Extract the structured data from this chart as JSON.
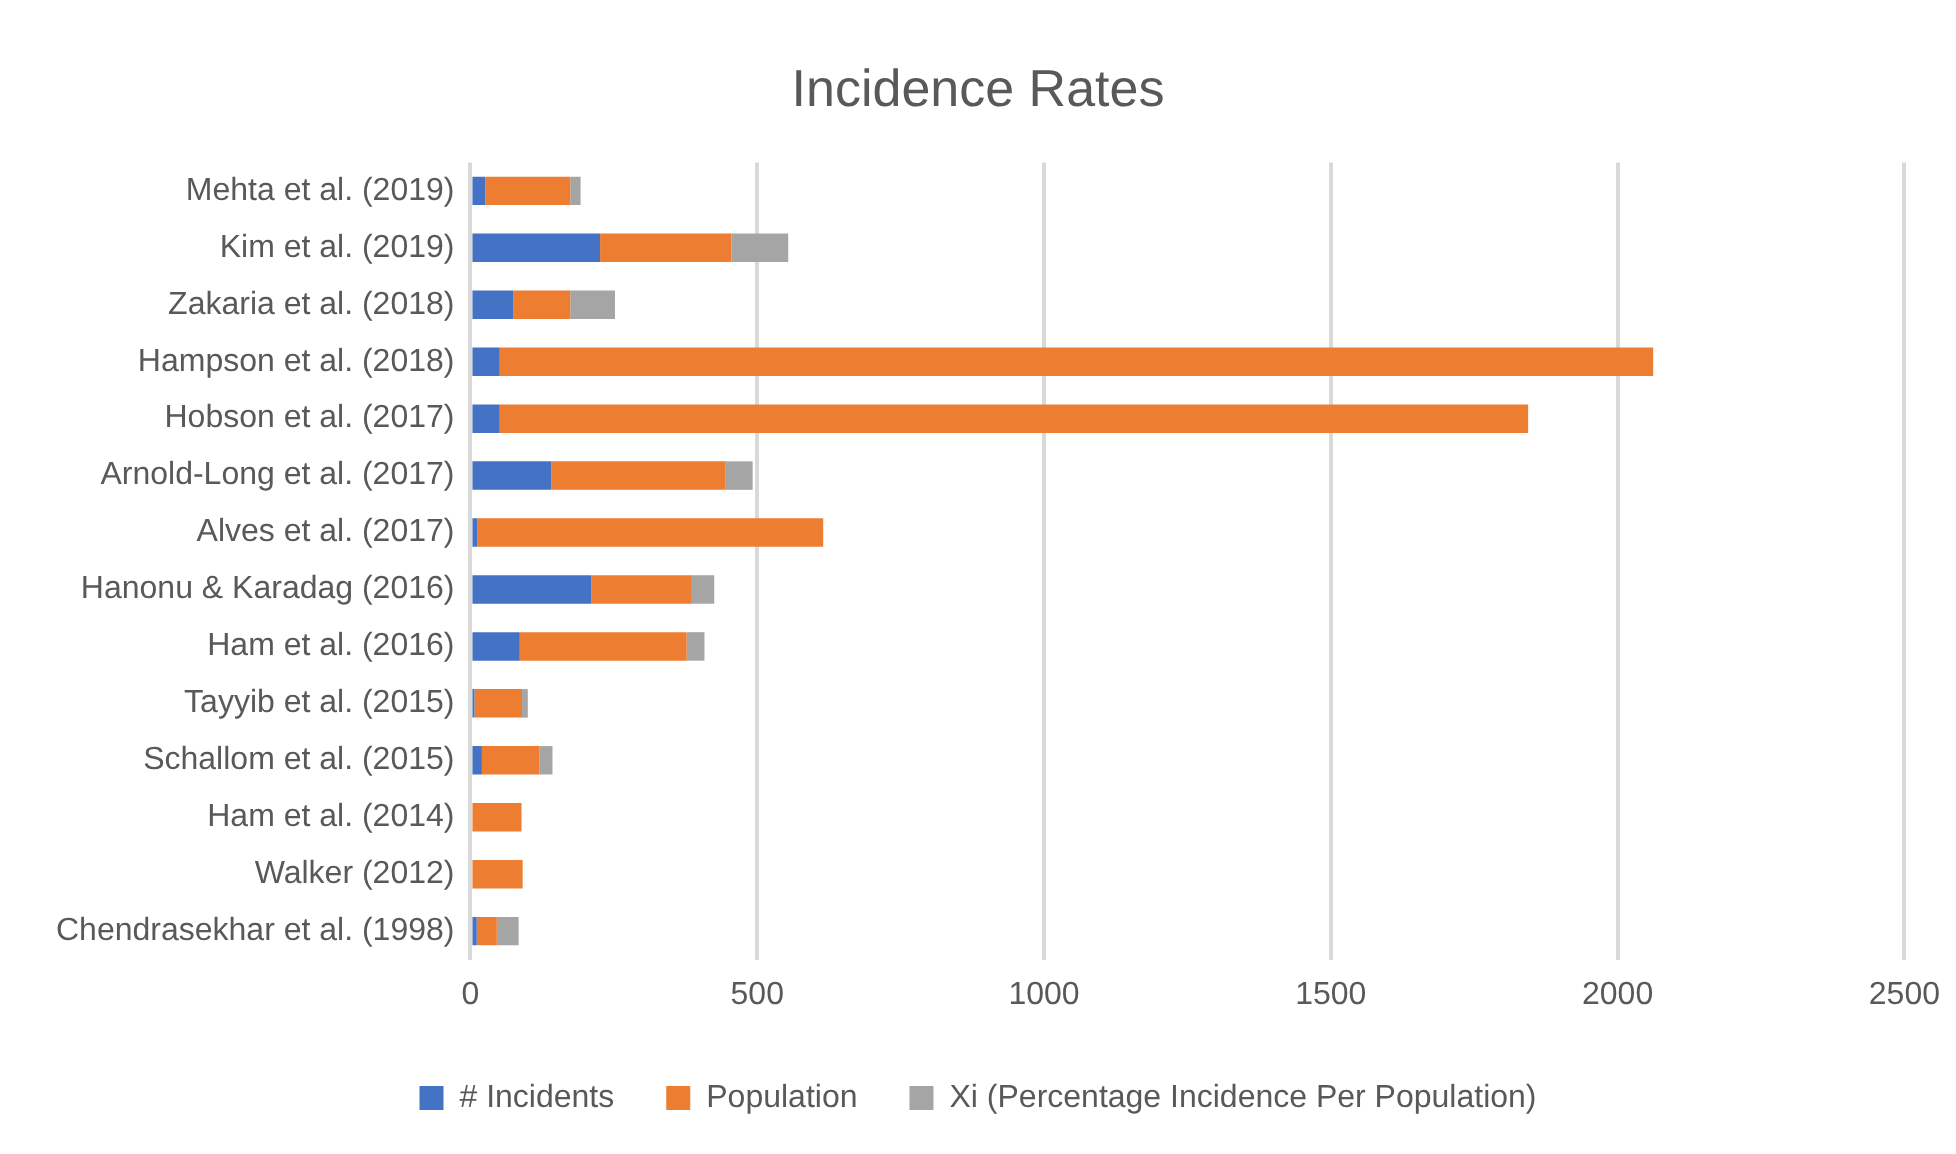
{
  "chart_data": {
    "type": "bar",
    "orientation": "horizontal",
    "stacked": true,
    "title": "Incidence Rates",
    "categories": [
      "Mehta et al. (2019)",
      "Kim et al. (2019)",
      "Zakaria et al. (2018)",
      "Hampson et al. (2018)",
      "Hobson et al. (2017)",
      "Arnold-Long et al. (2017)",
      "Alves et al. (2017)",
      "Hanonu & Karadag (2016)",
      "Ham et al. (2016)",
      "Tayyib et al. (2015)",
      "Schallom et al. (2015)",
      "Ham et al. (2014)",
      "Walker (2012)",
      "Chendrasekhar et al. (1998)"
    ],
    "series": [
      {
        "name": "# Incidents",
        "color": "#4472c4",
        "values": [
          26,
          226,
          75,
          51,
          51,
          141,
          12,
          211,
          86,
          7,
          20,
          0,
          0,
          11
        ]
      },
      {
        "name": "Population",
        "color": "#ed7d31",
        "values": [
          148,
          229,
          99,
          2011,
          1793,
          304,
          603,
          175,
          291,
          83,
          100,
          89,
          91,
          35
        ]
      },
      {
        "name": "Xi (Percentage Incidence Per Population)",
        "color": "#a5a5a5",
        "values": [
          18,
          99,
          78,
          0,
          0,
          47,
          null,
          39,
          31,
          10,
          23,
          0,
          0,
          38
        ]
      }
    ],
    "xlim": [
      0,
      2500
    ],
    "xticks": [
      0,
      500,
      1000,
      1500,
      2000,
      2500
    ],
    "grid": "x",
    "legend": "bottom"
  }
}
